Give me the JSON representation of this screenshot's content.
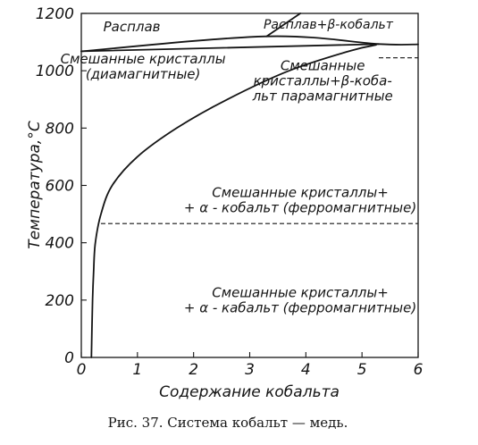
{
  "chart_data": {
    "type": "phase_diagram",
    "x_axis": {
      "label": "Содержание кобальта",
      "range": [
        0,
        6
      ],
      "ticks": [
        "0",
        "1",
        "2",
        "3",
        "4",
        "5",
        "6"
      ]
    },
    "y_axis": {
      "label": "Температура,°С",
      "range": [
        0,
        1200
      ],
      "ticks": [
        "0",
        "200",
        "400",
        "600",
        "800",
        "1000",
        "1200"
      ]
    },
    "regions": [
      {
        "lines": [
          "Расплав"
        ],
        "x": 0.9,
        "y": 1138
      },
      {
        "lines": [
          "Расплав+β-кобальт"
        ],
        "x": 4.4,
        "y": 1147
      },
      {
        "lines": [
          "Смешанные кристаллы",
          "(диамагнитные)"
        ],
        "x": 1.1,
        "y": 1026
      },
      {
        "lines": [
          "Смешанные",
          "кристаллы+β-коба-",
          "льт парамагнитные"
        ],
        "x": 4.3,
        "y": 1002
      },
      {
        "lines": [
          "Смешанные кристаллы+",
          "+ α - кобальт (ферромагнитные)"
        ],
        "x": 3.9,
        "y": 560
      },
      {
        "lines": [
          "Смешанные кристаллы+",
          "+ α - кабальт (ферромагнитные)"
        ],
        "x": 3.9,
        "y": 210
      }
    ],
    "series": [
      {
        "points": [
          [
            0.18,
            0
          ],
          [
            0.19,
            100
          ],
          [
            0.2,
            200
          ],
          [
            0.22,
            300
          ],
          [
            0.25,
            400
          ],
          [
            0.35,
            500
          ],
          [
            0.55,
            600
          ],
          [
            1.0,
            700
          ],
          [
            1.7,
            800
          ],
          [
            2.6,
            900
          ],
          [
            3.7,
            1000
          ],
          [
            4.8,
            1070
          ],
          [
            5.25,
            1090
          ]
        ]
      },
      {
        "points": [
          [
            0,
            1068
          ],
          [
            3.3,
            1120
          ],
          [
            5.3,
            1093
          ],
          [
            6,
            1092
          ]
        ]
      },
      {
        "points": [
          [
            0,
            1068
          ],
          [
            5.3,
            1093
          ]
        ]
      },
      {
        "points": [
          [
            3.3,
            1120
          ],
          [
            3.9,
            1200
          ]
        ]
      }
    ],
    "dashed_lines": [
      {
        "x": [
          5.3,
          6
        ],
        "y": 1045
      },
      {
        "x": [
          0.35,
          6
        ],
        "y": 467
      }
    ]
  },
  "caption": "Рис. 37. Система кобальт — медь."
}
